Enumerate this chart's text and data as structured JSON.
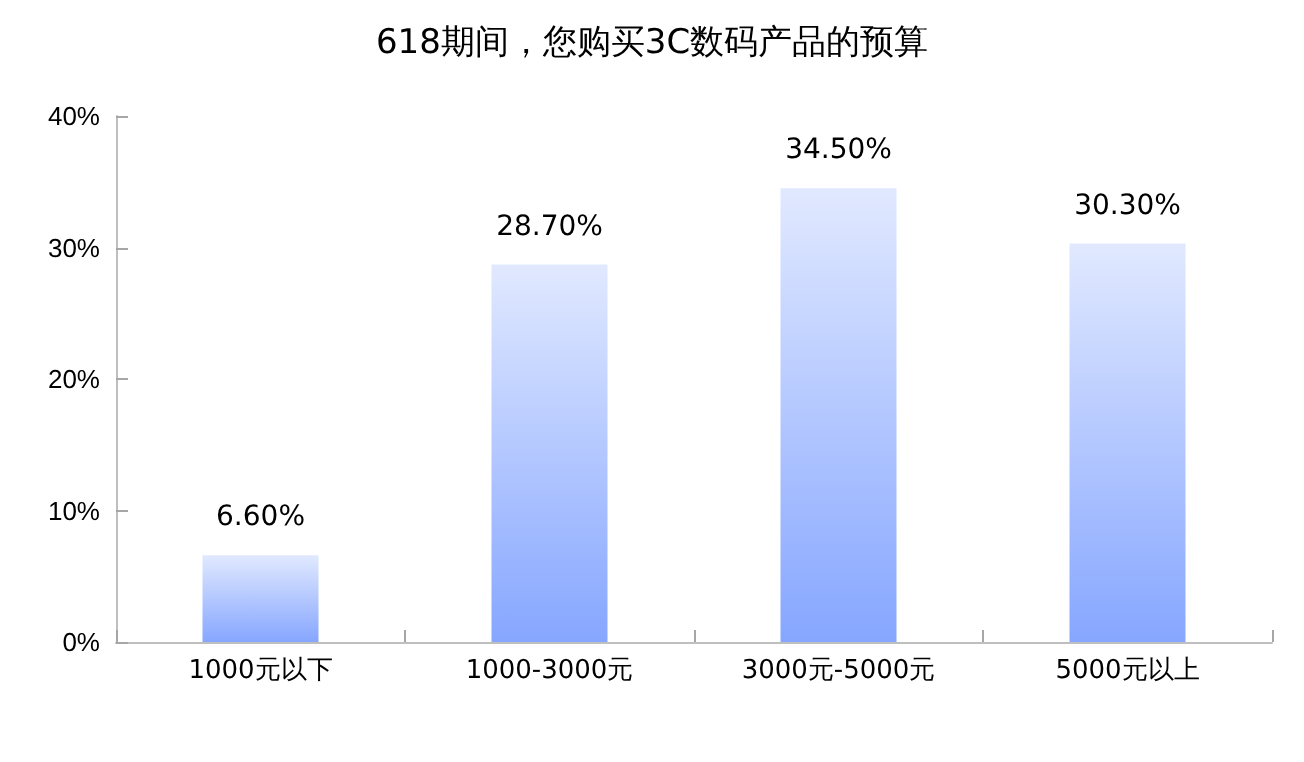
{
  "chart_data": {
    "type": "bar",
    "title": "618期间，您购买3C数码产品的预算",
    "categories": [
      "1000元以下",
      "1000-3000元",
      "3000元-5000元",
      "5000元以上"
    ],
    "values": [
      6.6,
      28.7,
      34.5,
      30.3
    ],
    "value_labels": [
      "6.60%",
      "28.70%",
      "34.50%",
      "30.30%"
    ],
    "color": "#86a6ff",
    "ylim": [
      0,
      40
    ],
    "yticks": [
      {
        "value": 0,
        "label": "0%"
      },
      {
        "value": 10,
        "label": "10%"
      },
      {
        "value": 20,
        "label": "20%"
      },
      {
        "value": 30,
        "label": "30%"
      },
      {
        "value": 40,
        "label": "40%"
      }
    ],
    "grid": false
  }
}
